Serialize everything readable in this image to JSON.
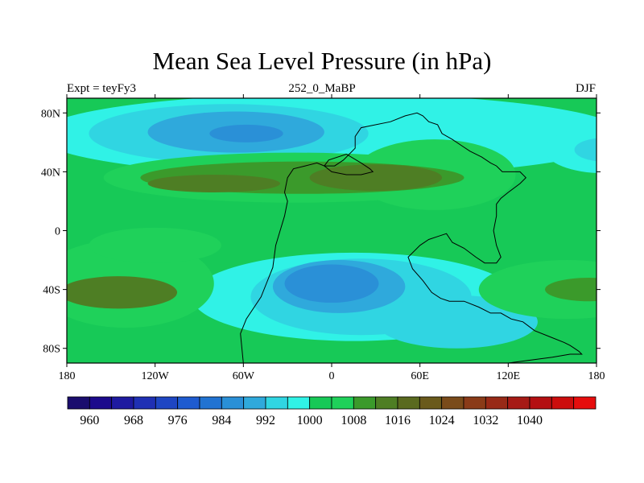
{
  "chart_data": {
    "type": "heatmap",
    "title": "Mean Sea Level Pressure (in hPa)",
    "left_label": "Expt = teyFy3",
    "center_label": "252_0_MaBP",
    "right_label": "DJF",
    "x_range": [
      -180,
      180
    ],
    "y_range": [
      -90,
      90
    ],
    "x_ticks": [
      {
        "value": -180,
        "label": "180"
      },
      {
        "value": -120,
        "label": "120W"
      },
      {
        "value": -60,
        "label": "60W"
      },
      {
        "value": 0,
        "label": "0"
      },
      {
        "value": 60,
        "label": "60E"
      },
      {
        "value": 120,
        "label": "120E"
      },
      {
        "value": 180,
        "label": "180"
      }
    ],
    "y_ticks": [
      {
        "value": 80,
        "label": "80N"
      },
      {
        "value": 40,
        "label": "40N"
      },
      {
        "value": 0,
        "label": "0"
      },
      {
        "value": -40,
        "label": "40S"
      },
      {
        "value": -80,
        "label": "80S"
      }
    ],
    "background_level": 998,
    "features": [
      {
        "name": "arctic-band",
        "lon": 0,
        "lat": 65,
        "rx": 200,
        "ry": 28,
        "level": 994
      },
      {
        "name": "north-pacific-low-wide",
        "lon": -70,
        "lat": 66,
        "rx": 95,
        "ry": 20,
        "level": 990
      },
      {
        "name": "north-pacific-low-mid",
        "lon": -65,
        "lat": 67,
        "rx": 60,
        "ry": 14,
        "level": 986
      },
      {
        "name": "north-pacific-low-core",
        "lon": -58,
        "lat": 66,
        "rx": 25,
        "ry": 6,
        "level": 982
      },
      {
        "name": "east-north-low-outer",
        "lon": 185,
        "lat": 55,
        "rx": 40,
        "ry": 16,
        "level": 994
      },
      {
        "name": "east-north-low-inner",
        "lon": 185,
        "lat": 55,
        "rx": 20,
        "ry": 8,
        "level": 990
      },
      {
        "name": "north-high-belt",
        "lon": -25,
        "lat": 36,
        "rx": 130,
        "ry": 17,
        "level": 1002
      },
      {
        "name": "north-high-east",
        "lon": 70,
        "lat": 38,
        "rx": 55,
        "ry": 24,
        "level": 1002
      },
      {
        "name": "north-high-mid",
        "lon": -20,
        "lat": 36,
        "rx": 110,
        "ry": 11,
        "level": 1006
      },
      {
        "name": "north-high-core",
        "lon": 30,
        "lat": 36,
        "rx": 45,
        "ry": 9,
        "level": 1010
      },
      {
        "name": "north-high-core-west",
        "lon": -80,
        "lat": 32,
        "rx": 45,
        "ry": 6,
        "level": 1010
      },
      {
        "name": "south-low-outer",
        "lon": 15,
        "lat": -45,
        "rx": 110,
        "ry": 30,
        "level": 994
      },
      {
        "name": "south-low-mid",
        "lon": 20,
        "lat": -45,
        "rx": 75,
        "ry": 26,
        "level": 990
      },
      {
        "name": "south-low-east",
        "lon": 85,
        "lat": -62,
        "rx": 55,
        "ry": 18,
        "level": 990
      },
      {
        "name": "south-low-inner",
        "lon": 5,
        "lat": -38,
        "rx": 45,
        "ry": 18,
        "level": 986
      },
      {
        "name": "south-low-core",
        "lon": 0,
        "lat": -36,
        "rx": 32,
        "ry": 13,
        "level": 982
      },
      {
        "name": "south-high-west-outer",
        "lon": -140,
        "lat": -36,
        "rx": 60,
        "ry": 30,
        "level": 1002
      },
      {
        "name": "south-high-west-core",
        "lon": -145,
        "lat": -42,
        "rx": 40,
        "ry": 11,
        "level": 1010
      },
      {
        "name": "south-high-east-outer",
        "lon": 160,
        "lat": -40,
        "rx": 60,
        "ry": 20,
        "level": 1002
      },
      {
        "name": "south-high-east-core",
        "lon": 175,
        "lat": -40,
        "rx": 30,
        "ry": 8,
        "level": 1006
      },
      {
        "name": "equator-west-high",
        "lon": -120,
        "lat": -10,
        "rx": 45,
        "ry": 12,
        "level": 1002
      }
    ],
    "continent_outline": [
      [
        -60,
        -90
      ],
      [
        -62,
        -70
      ],
      [
        -58,
        -60
      ],
      [
        -48,
        -45
      ],
      [
        -44,
        -35
      ],
      [
        -40,
        -25
      ],
      [
        -38,
        -10
      ],
      [
        -35,
        0
      ],
      [
        -32,
        10
      ],
      [
        -30,
        20
      ],
      [
        -32,
        26
      ],
      [
        -30,
        36
      ],
      [
        -26,
        42
      ],
      [
        -18,
        44
      ],
      [
        -10,
        46
      ],
      [
        -5,
        44
      ],
      [
        2,
        44
      ],
      [
        8,
        48
      ],
      [
        16,
        56
      ],
      [
        16,
        64
      ],
      [
        20,
        70
      ],
      [
        40,
        74
      ],
      [
        50,
        78
      ],
      [
        58,
        80
      ],
      [
        62,
        78
      ],
      [
        66,
        74
      ],
      [
        72,
        72
      ],
      [
        75,
        66
      ],
      [
        82,
        62
      ],
      [
        88,
        58
      ],
      [
        94,
        54
      ],
      [
        102,
        50
      ],
      [
        108,
        46
      ],
      [
        112,
        44
      ],
      [
        116,
        40
      ],
      [
        128,
        40
      ],
      [
        132,
        36
      ],
      [
        128,
        32
      ],
      [
        120,
        26
      ],
      [
        115,
        22
      ],
      [
        112,
        18
      ],
      [
        112,
        10
      ],
      [
        110,
        0
      ],
      [
        112,
        -10
      ],
      [
        115,
        -18
      ],
      [
        112,
        -22
      ],
      [
        104,
        -22
      ],
      [
        98,
        -18
      ],
      [
        90,
        -12
      ],
      [
        82,
        -8
      ],
      [
        78,
        -2
      ],
      [
        72,
        -4
      ],
      [
        66,
        -6
      ],
      [
        60,
        -10
      ],
      [
        52,
        -18
      ],
      [
        55,
        -26
      ],
      [
        62,
        -34
      ],
      [
        68,
        -42
      ],
      [
        74,
        -46
      ],
      [
        80,
        -48
      ],
      [
        90,
        -48
      ],
      [
        100,
        -52
      ],
      [
        108,
        -56
      ],
      [
        115,
        -56
      ],
      [
        122,
        -60
      ],
      [
        130,
        -62
      ],
      [
        138,
        -68
      ],
      [
        148,
        -72
      ],
      [
        158,
        -76
      ],
      [
        162,
        -78
      ],
      [
        165,
        -80
      ],
      [
        168,
        -82
      ],
      [
        170,
        -84
      ],
      [
        162,
        -84
      ],
      [
        150,
        -86
      ],
      [
        120,
        -90
      ]
    ],
    "lake_outline": [
      [
        -5,
        44
      ],
      [
        -2,
        48
      ],
      [
        10,
        52
      ],
      [
        20,
        46
      ],
      [
        26,
        42
      ],
      [
        28,
        40
      ],
      [
        20,
        38
      ],
      [
        10,
        38
      ],
      [
        0,
        40
      ]
    ],
    "colorbar": {
      "colors": [
        "#1a0d6e",
        "#1c0a8c",
        "#1e1aa0",
        "#1f30b4",
        "#1e46c3",
        "#1e5bd0",
        "#2173d2",
        "#2a90d7",
        "#2fa9dc",
        "#30d5e2",
        "#30f2e6",
        "#17c957",
        "#1fd15a",
        "#3b9a2b",
        "#4e7e24",
        "#5a6a1f",
        "#6a5a1c",
        "#7a4b1a",
        "#8a3b18",
        "#982a17",
        "#a61a15",
        "#b40f12",
        "#cc0d0d",
        "#e60d0d"
      ],
      "labels": [
        "960",
        "968",
        "976",
        "984",
        "992",
        "1000",
        "1008",
        "1016",
        "1024",
        "1032",
        "1040"
      ]
    }
  }
}
